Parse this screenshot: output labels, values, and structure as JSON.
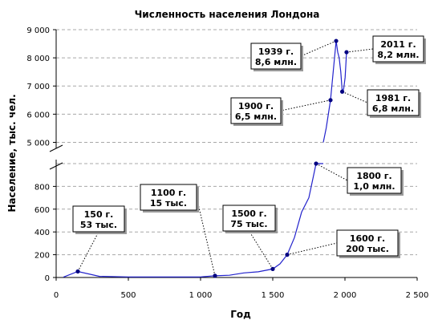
{
  "chart_data": {
    "type": "line",
    "title": "Численность населения Лондона",
    "xlabel": "Год",
    "ylabel": "Население, тыс. чел.",
    "xlim": [
      0,
      2500
    ],
    "x_ticks": [
      0,
      500,
      1000,
      1500,
      2000,
      2500
    ],
    "x_tick_labels": [
      "0",
      "500",
      "1 000",
      "1 500",
      "2 000",
      "2 500"
    ],
    "y_axis_broken": true,
    "y_lower_segment": {
      "ylim": [
        0,
        1000
      ],
      "ticks": [
        0,
        200,
        400,
        600,
        800
      ],
      "tick_labels": [
        "0",
        "200",
        "400",
        "600",
        "800"
      ]
    },
    "y_upper_segment": {
      "ylim": [
        4900,
        9000
      ],
      "ticks": [
        5000,
        6000,
        7000,
        8000,
        9000
      ],
      "tick_labels": [
        "5 000",
        "6 000",
        "7 000",
        "8 000",
        "9 000"
      ]
    },
    "grid": true,
    "series": [
      {
        "x": [
          50,
          150,
          300,
          500,
          700,
          900,
          1000,
          1100,
          1200,
          1300,
          1400,
          1500,
          1550,
          1600,
          1650,
          1700,
          1750,
          1800,
          1850
        ],
        "y": [
          3,
          53,
          10,
          5,
          5,
          5,
          5,
          15,
          20,
          40,
          50,
          75,
          120,
          200,
          350,
          575,
          700,
          1000,
          1000
        ]
      },
      {
        "x": [
          1850,
          1870,
          1900,
          1939,
          1950,
          1960,
          1971,
          1981,
          1991,
          2001,
          2011
        ],
        "y": [
          5000,
          5500,
          6500,
          8600,
          8200,
          8000,
          7500,
          6800,
          6900,
          7300,
          8200
        ]
      }
    ],
    "annotations": [
      {
        "year": 150,
        "value": 53,
        "line1": "150 г.",
        "line2": "53 тыс."
      },
      {
        "year": 1100,
        "value": 15,
        "line1": "1100 г.",
        "line2": "15 тыс."
      },
      {
        "year": 1500,
        "value": 75,
        "line1": "1500 г.",
        "line2": "75 тыс."
      },
      {
        "year": 1600,
        "value": 200,
        "line1": "1600 г.",
        "line2": "200 тыс."
      },
      {
        "year": 1800,
        "value": 1000,
        "line1": "1800 г.",
        "line2": "1,0 млн."
      },
      {
        "year": 1900,
        "value": 6500,
        "line1": "1900 г.",
        "line2": "6,5 млн."
      },
      {
        "year": 1939,
        "value": 8600,
        "line1": "1939 г.",
        "line2": "8,6 млн."
      },
      {
        "year": 1981,
        "value": 6800,
        "line1": "1981 г.",
        "line2": "6,8 млн."
      },
      {
        "year": 2011,
        "value": 8200,
        "line1": "2011 г.",
        "line2": "8,2 млн."
      }
    ],
    "colors": {
      "series": "#2222cc",
      "markers": "#000080"
    }
  }
}
